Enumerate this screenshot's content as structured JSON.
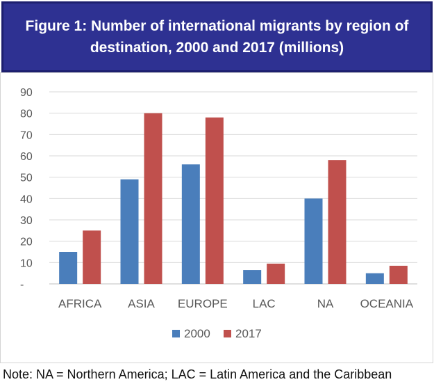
{
  "figure": {
    "title": "Figure 1:  Number of international migrants by region of\ndestination, 2000 and 2017 (millions)",
    "note": "Note: NA = Northern America; LAC = Latin America and the Caribbean"
  },
  "colors": {
    "banner": "#2e3192",
    "series_2000": "#4a7ebb",
    "series_2017": "#c0504d",
    "grid": "#d9d9d9",
    "axis_text": "#595959"
  },
  "chart_data": {
    "type": "bar",
    "title": "Figure 1:  Number of international migrants by region of destination, 2000 and 2017 (millions)",
    "xlabel": "",
    "ylabel": "",
    "categories": [
      "AFRICA",
      "ASIA",
      "EUROPE",
      "LAC",
      "NA",
      "OCEANIA"
    ],
    "series": [
      {
        "name": "2000",
        "values": [
          15,
          49,
          56,
          6.5,
          40,
          5
        ]
      },
      {
        "name": "2017",
        "values": [
          25,
          80,
          78,
          9.5,
          58,
          8.5
        ]
      }
    ],
    "ylim": [
      0,
      90
    ],
    "yticks": [
      "-",
      "10",
      "20",
      "30",
      "40",
      "50",
      "60",
      "70",
      "80",
      "90"
    ],
    "grid": true,
    "legend_position": "bottom"
  }
}
